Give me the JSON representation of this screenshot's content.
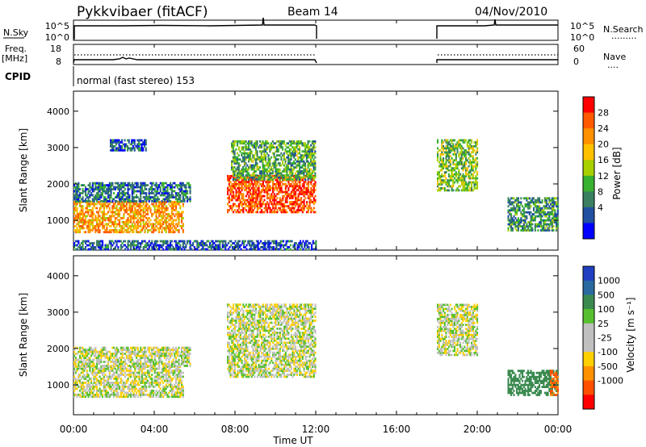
{
  "header": {
    "station": "Pykkvibaer (fitACF)",
    "beam": "Beam 14",
    "date": "04/Nov/2010"
  },
  "panels": {
    "nsky": {
      "left_label": "N.Sky",
      "left_ticks": [
        "10^5",
        "10^0"
      ],
      "right_ticks": [
        "10^5",
        "10^0"
      ],
      "right_label": "N.Search",
      "right_legend_line": "........."
    },
    "freq": {
      "left_label_1": "Freq.",
      "left_label_2": "[MHz]",
      "left_ticks": [
        "18",
        "8"
      ],
      "right_ticks": [
        "60",
        "0"
      ],
      "right_label": "Nave",
      "right_legend_line": "...."
    },
    "cpid": {
      "label": "CPID",
      "text": "normal (fast stereo) 153"
    }
  },
  "power_colorbar": {
    "label": "Power [dB]",
    "ticks": [
      "28",
      "24",
      "20",
      "16",
      "12",
      "8",
      "4"
    ],
    "colors": [
      "#ff0000",
      "#ff5a00",
      "#ff9000",
      "#ffc000",
      "#a8d000",
      "#38b030",
      "#3a8060",
      "#2050a0",
      "#0000ff"
    ]
  },
  "velocity_colorbar": {
    "label": "Velocity [m s⁻¹]",
    "ticks": [
      "1000",
      "500",
      "100",
      "25",
      "-25",
      "-100",
      "-500",
      "-1000"
    ],
    "colors": [
      "#2040c0",
      "#2a6aa0",
      "#3a8a50",
      "#58c030",
      "#c0c0c0",
      "#c0c0c0",
      "#ffd000",
      "#ff9000",
      "#ff5000",
      "#ff0000"
    ]
  },
  "chart_data": [
    {
      "type": "heatmap",
      "title": "Power",
      "xlabel": "Time UT",
      "ylabel": "Slant Range [km]",
      "xticks": [
        "00:00",
        "04:00",
        "08:00",
        "12:00",
        "16:00",
        "20:00",
        "00:00"
      ],
      "x_hours": [
        0,
        4,
        8,
        12,
        16,
        20,
        24
      ],
      "yticks": [
        1000,
        2000,
        3000,
        4000
      ],
      "ylim": [
        180,
        4550
      ],
      "xlim": [
        0,
        24
      ],
      "echo_regions": [
        {
          "t0": 0.0,
          "t1": 5.4,
          "r0": 650,
          "r1": 1500,
          "level": 22
        },
        {
          "t0": 0.0,
          "t1": 5.8,
          "r0": 1500,
          "r1": 2000,
          "level": 8
        },
        {
          "t0": 1.8,
          "t1": 3.6,
          "r0": 2900,
          "r1": 3200,
          "level": 6
        },
        {
          "t0": 7.6,
          "t1": 12.0,
          "r0": 1200,
          "r1": 2200,
          "level": 27
        },
        {
          "t0": 7.8,
          "t1": 12.0,
          "r0": 2100,
          "r1": 3200,
          "level": 12
        },
        {
          "t0": 18.0,
          "t1": 20.0,
          "r0": 1800,
          "r1": 3200,
          "level": 14
        },
        {
          "t0": 21.5,
          "t1": 24.0,
          "r0": 700,
          "r1": 1600,
          "level": 10
        },
        {
          "t0": 0.0,
          "t1": 12.0,
          "r0": 180,
          "r1": 450,
          "level": 6
        }
      ]
    },
    {
      "type": "heatmap",
      "title": "Velocity",
      "xlabel": "Time UT",
      "ylabel": "Slant Range [km]",
      "xticks": [
        "00:00",
        "04:00",
        "08:00",
        "12:00",
        "16:00",
        "20:00",
        "00:00"
      ],
      "x_hours": [
        0,
        4,
        8,
        12,
        16,
        20,
        24
      ],
      "yticks": [
        1000,
        2000,
        3000,
        4000
      ],
      "ylim": [
        180,
        4550
      ],
      "xlim": [
        0,
        24
      ],
      "echo_regions": [
        {
          "t0": 0.0,
          "t1": 5.4,
          "r0": 650,
          "r1": 1500,
          "velocity": 0
        },
        {
          "t0": 0.0,
          "t1": 5.8,
          "r0": 1500,
          "r1": 2000,
          "velocity": 0
        },
        {
          "t0": 7.6,
          "t1": 12.0,
          "r0": 1200,
          "r1": 3200,
          "velocity": 0
        },
        {
          "t0": 18.0,
          "t1": 20.0,
          "r0": 1800,
          "r1": 3200,
          "velocity": 0
        },
        {
          "t0": 21.5,
          "t1": 24.0,
          "r0": 700,
          "r1": 1400,
          "velocity": 150
        },
        {
          "t0": 23.6,
          "t1": 24.0,
          "r0": 700,
          "r1": 1400,
          "velocity": -500
        }
      ]
    }
  ],
  "x_axis": {
    "label": "Time UT",
    "ticks": [
      "00:00",
      "04:00",
      "08:00",
      "12:00",
      "16:00",
      "20:00",
      "00:00"
    ]
  }
}
